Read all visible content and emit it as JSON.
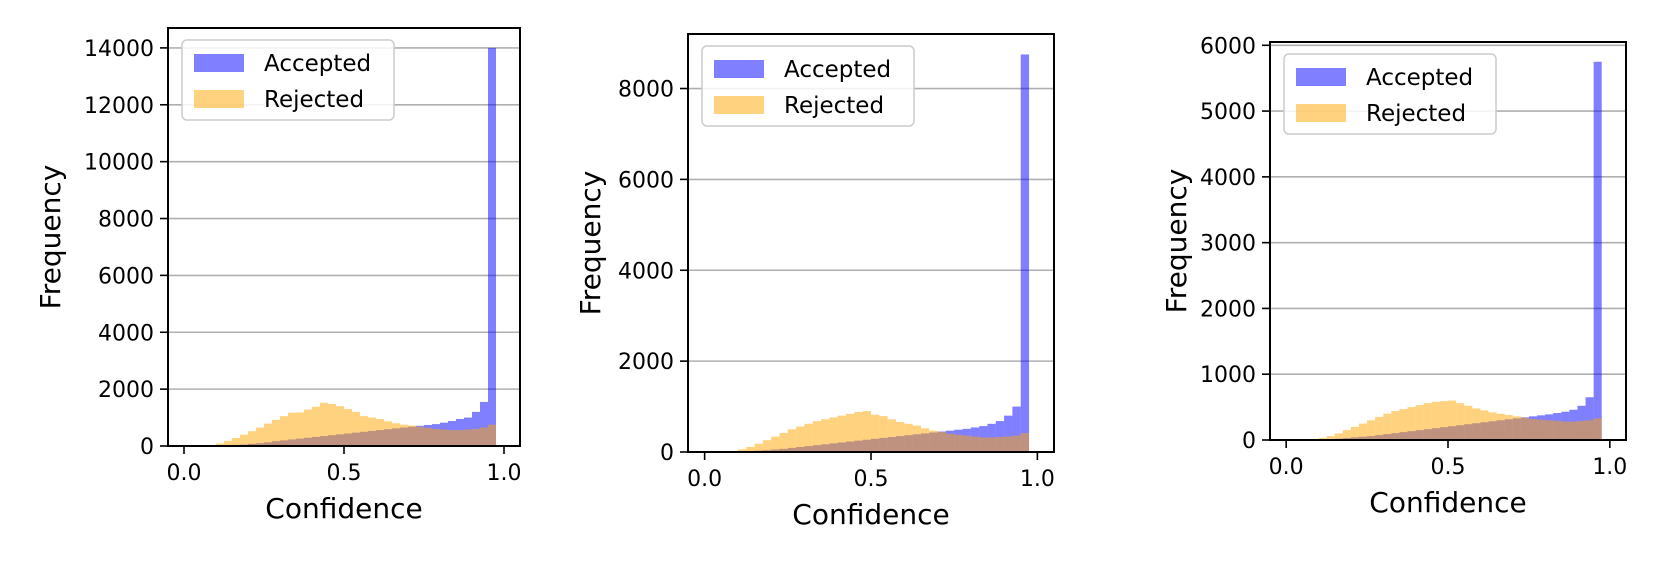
{
  "chart_data": [
    {
      "type": "bar",
      "histogram": true,
      "xlabel": "Confidence",
      "ylabel": "Frequency",
      "xlim": [
        -0.05,
        1.05
      ],
      "ylim": [
        0,
        14700
      ],
      "xticks": [
        "0.0",
        "0.5",
        "1.0"
      ],
      "yticks": [
        0,
        2000,
        4000,
        6000,
        8000,
        10000,
        12000,
        14000
      ],
      "grid": "y",
      "legend_position": "upper-left",
      "bins": {
        "start": 0,
        "end": 1,
        "count": 40
      },
      "series": [
        {
          "name": "Accepted",
          "color": "#0000ff",
          "alpha": 0.5,
          "values": [
            0,
            0,
            0,
            0,
            20,
            30,
            40,
            50,
            80,
            100,
            130,
            170,
            200,
            230,
            260,
            290,
            320,
            350,
            380,
            410,
            440,
            470,
            500,
            530,
            560,
            590,
            620,
            650,
            680,
            710,
            740,
            770,
            820,
            880,
            950,
            1000,
            1200,
            1550,
            14000,
            0
          ]
        },
        {
          "name": "Rejected",
          "color": "#ffa500",
          "alpha": 0.5,
          "values": [
            0,
            0,
            0,
            30,
            90,
            180,
            280,
            400,
            520,
            650,
            790,
            920,
            1050,
            1170,
            1180,
            1280,
            1380,
            1520,
            1480,
            1400,
            1300,
            1200,
            1050,
            1000,
            950,
            870,
            800,
            750,
            720,
            680,
            640,
            600,
            580,
            560,
            560,
            580,
            600,
            650,
            750,
            0
          ]
        }
      ]
    },
    {
      "type": "bar",
      "histogram": true,
      "xlabel": "Confidence",
      "ylabel": "Frequency",
      "xlim": [
        -0.05,
        1.05
      ],
      "ylim": [
        0,
        9200
      ],
      "xticks": [
        "0.0",
        "0.5",
        "1.0"
      ],
      "yticks": [
        0,
        2000,
        4000,
        6000,
        8000
      ],
      "grid": "y",
      "legend_position": "upper-left",
      "bins": {
        "start": 0,
        "end": 1,
        "count": 40
      },
      "series": [
        {
          "name": "Accepted",
          "color": "#0000ff",
          "alpha": 0.5,
          "values": [
            0,
            0,
            0,
            0,
            15,
            20,
            30,
            40,
            55,
            70,
            90,
            110,
            130,
            150,
            170,
            190,
            210,
            230,
            250,
            270,
            290,
            310,
            330,
            350,
            370,
            390,
            410,
            430,
            450,
            470,
            490,
            510,
            540,
            570,
            620,
            680,
            800,
            1000,
            8750,
            0
          ]
        },
        {
          "name": "Rejected",
          "color": "#ffa500",
          "alpha": 0.5,
          "values": [
            0,
            0,
            0,
            20,
            60,
            110,
            180,
            260,
            340,
            420,
            500,
            560,
            620,
            680,
            720,
            760,
            800,
            840,
            880,
            900,
            820,
            790,
            720,
            660,
            620,
            580,
            520,
            470,
            440,
            400,
            380,
            360,
            340,
            320,
            320,
            330,
            340,
            360,
            420,
            0
          ]
        }
      ]
    },
    {
      "type": "bar",
      "histogram": true,
      "xlabel": "Confidence",
      "ylabel": "Frequency",
      "xlim": [
        -0.05,
        1.05
      ],
      "ylim": [
        0,
        6050
      ],
      "xticks": [
        "0.0",
        "0.5",
        "1.0"
      ],
      "yticks": [
        0,
        1000,
        2000,
        3000,
        4000,
        5000,
        6000
      ],
      "grid": "y",
      "legend_position": "upper-left",
      "bins": {
        "start": 0,
        "end": 1,
        "count": 40
      },
      "series": [
        {
          "name": "Accepted",
          "color": "#0000ff",
          "alpha": 0.5,
          "values": [
            0,
            0,
            0,
            0,
            10,
            15,
            20,
            30,
            40,
            50,
            60,
            75,
            90,
            105,
            120,
            135,
            150,
            165,
            180,
            195,
            210,
            225,
            240,
            255,
            270,
            285,
            300,
            315,
            330,
            345,
            360,
            375,
            390,
            410,
            430,
            460,
            520,
            650,
            5750,
            0
          ]
        },
        {
          "name": "Rejected",
          "color": "#ffa500",
          "alpha": 0.5,
          "values": [
            0,
            0,
            0,
            10,
            30,
            60,
            100,
            150,
            200,
            250,
            300,
            350,
            400,
            440,
            470,
            500,
            530,
            560,
            580,
            590,
            600,
            560,
            520,
            480,
            450,
            420,
            400,
            380,
            360,
            340,
            320,
            310,
            300,
            290,
            280,
            280,
            290,
            300,
            330,
            0
          ]
        }
      ]
    }
  ]
}
